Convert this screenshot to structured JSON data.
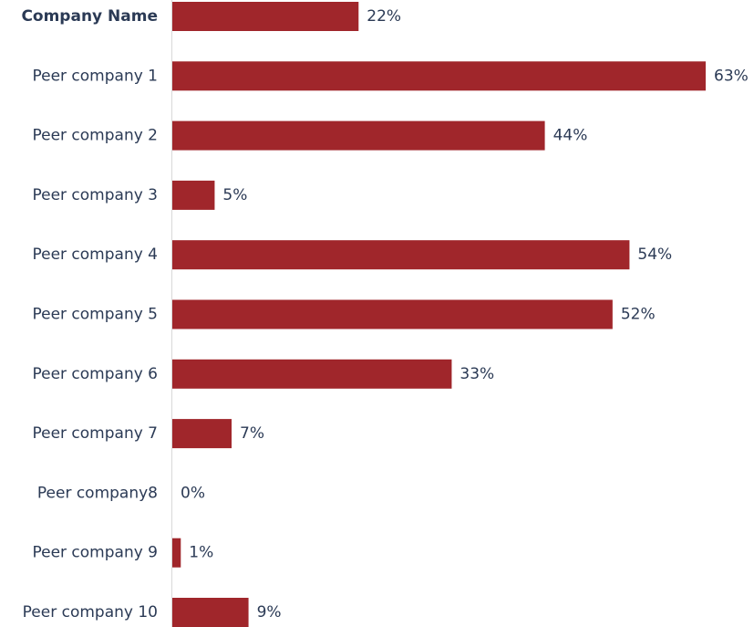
{
  "chart_data": {
    "type": "bar",
    "orientation": "horizontal",
    "categories": [
      "Company Name",
      "Peer company 1",
      "Peer company 2",
      "Peer company 3",
      "Peer company 4",
      "Peer company 5",
      "Peer company 6",
      "Peer company 7",
      "Peer company8",
      "Peer company 9",
      "Peer company 10"
    ],
    "values": [
      22,
      63,
      44,
      5,
      54,
      52,
      33,
      7,
      0,
      1,
      9
    ],
    "value_labels": [
      "22%",
      "63%",
      "44%",
      "5%",
      "54%",
      "52%",
      "33%",
      "7%",
      "0%",
      "1%",
      "9%"
    ],
    "highlighted_category": "Company Name",
    "unit": "%",
    "xlim": [
      0,
      63
    ],
    "grid": false,
    "legend": "none",
    "title": "",
    "xlabel": "",
    "ylabel": ""
  },
  "colors": {
    "bar": "#a0262b",
    "text": "#2b3a55"
  }
}
